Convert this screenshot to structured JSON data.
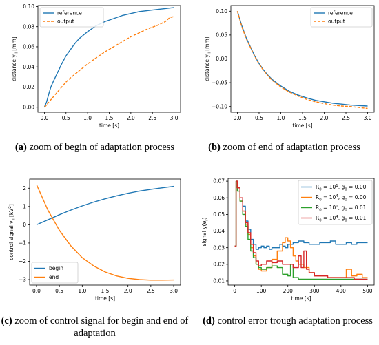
{
  "captions": {
    "a": {
      "tag": "(a)",
      "text": " zoom of begin of adaptation process"
    },
    "b": {
      "tag": "(b)",
      "text": " zoom of end of adaptation process"
    },
    "c": {
      "tag": "(c)",
      "text": " zoom of control signal for begin and end of adaptation"
    },
    "d": {
      "tag": "(d)",
      "text": " control error trough adaptation process"
    }
  },
  "chart_data": [
    {
      "id": "a",
      "type": "line",
      "xlabel": "time [s]",
      "ylabel": "distance y_ll [mm]",
      "xlim": [
        -0.15,
        3.15
      ],
      "ylim": [
        -0.005,
        0.101
      ],
      "xticks": [
        0.0,
        0.5,
        1.0,
        1.5,
        2.0,
        2.5,
        3.0
      ],
      "yticks": [
        0.0,
        0.02,
        0.04,
        0.06,
        0.08,
        0.1
      ],
      "tick_decimals": {
        "x": 1,
        "y": 2
      },
      "legend": "top-left",
      "series": [
        {
          "name": "reference",
          "color": "#1f77b4",
          "style": "solid",
          "x": [
            0.0,
            0.05,
            0.1,
            0.15,
            0.2,
            0.3,
            0.4,
            0.5,
            0.6,
            0.7,
            0.8,
            1.0,
            1.2,
            1.4,
            1.6,
            1.8,
            2.0,
            2.2,
            2.4,
            2.6,
            2.8,
            3.0
          ],
          "y": [
            0.0,
            0.005,
            0.013,
            0.02,
            0.025,
            0.034,
            0.043,
            0.051,
            0.057,
            0.063,
            0.068,
            0.075,
            0.081,
            0.085,
            0.088,
            0.091,
            0.093,
            0.095,
            0.096,
            0.097,
            0.098,
            0.099
          ]
        },
        {
          "name": "output",
          "color": "#ff7f0e",
          "style": "dashed",
          "x": [
            0.0,
            0.05,
            0.1,
            0.2,
            0.3,
            0.4,
            0.5,
            0.6,
            0.8,
            1.0,
            1.2,
            1.4,
            1.6,
            1.8,
            2.0,
            2.2,
            2.4,
            2.6,
            2.8,
            2.9,
            3.0
          ],
          "y": [
            0.0,
            0.002,
            0.005,
            0.01,
            0.015,
            0.02,
            0.025,
            0.029,
            0.036,
            0.043,
            0.049,
            0.055,
            0.06,
            0.065,
            0.07,
            0.074,
            0.078,
            0.081,
            0.085,
            0.089,
            0.09
          ]
        }
      ]
    },
    {
      "id": "b",
      "type": "line",
      "xlabel": "time [s]",
      "ylabel": "distance y_ll [mm]",
      "xlim": [
        -0.15,
        3.15
      ],
      "ylim": [
        -0.112,
        0.112
      ],
      "xticks": [
        0.0,
        0.5,
        1.0,
        1.5,
        2.0,
        2.5,
        3.0
      ],
      "yticks": [
        -0.1,
        -0.05,
        0.0,
        0.05,
        0.1
      ],
      "tick_decimals": {
        "x": 1,
        "y": 2
      },
      "legend": "top-right",
      "series": [
        {
          "name": "reference",
          "color": "#1f77b4",
          "style": "solid",
          "x": [
            0.0,
            0.1,
            0.2,
            0.3,
            0.4,
            0.5,
            0.6,
            0.7,
            0.8,
            1.0,
            1.2,
            1.4,
            1.6,
            1.8,
            2.0,
            2.2,
            2.4,
            2.6,
            2.8,
            3.0
          ],
          "y": [
            0.1,
            0.07,
            0.045,
            0.025,
            0.006,
            -0.01,
            -0.023,
            -0.034,
            -0.043,
            -0.057,
            -0.068,
            -0.076,
            -0.082,
            -0.087,
            -0.09,
            -0.093,
            -0.095,
            -0.097,
            -0.098,
            -0.099
          ]
        },
        {
          "name": "output",
          "color": "#ff7f0e",
          "style": "dashed",
          "x": [
            0.0,
            0.1,
            0.2,
            0.3,
            0.4,
            0.5,
            0.6,
            0.7,
            0.8,
            1.0,
            1.2,
            1.4,
            1.6,
            1.8,
            2.0,
            2.2,
            2.4,
            2.6,
            2.8,
            3.0
          ],
          "y": [
            0.1,
            0.068,
            0.043,
            0.024,
            0.005,
            -0.011,
            -0.024,
            -0.035,
            -0.045,
            -0.059,
            -0.07,
            -0.078,
            -0.085,
            -0.09,
            -0.094,
            -0.097,
            -0.099,
            -0.1,
            -0.102,
            -0.104
          ]
        }
      ]
    },
    {
      "id": "c",
      "type": "line",
      "xlabel": "time [s]",
      "ylabel": "control signal v_ll [kV^2]",
      "xlim": [
        -0.15,
        3.15
      ],
      "ylim": [
        -3.3,
        2.5
      ],
      "xticks": [
        0.0,
        0.5,
        1.0,
        1.5,
        2.0,
        2.5,
        3.0
      ],
      "yticks": [
        -3,
        -2,
        -1,
        0,
        1,
        2
      ],
      "tick_decimals": {
        "x": 1,
        "y": 0
      },
      "legend": "bottom-left",
      "series": [
        {
          "name": "begin",
          "color": "#1f77b4",
          "style": "solid",
          "x": [
            0.0,
            0.25,
            0.5,
            0.75,
            1.0,
            1.25,
            1.5,
            1.75,
            2.0,
            2.25,
            2.5,
            2.75,
            3.0
          ],
          "y": [
            0.0,
            0.27,
            0.55,
            0.8,
            1.03,
            1.24,
            1.42,
            1.58,
            1.72,
            1.84,
            1.94,
            2.02,
            2.1
          ]
        },
        {
          "name": "end",
          "color": "#ff7f0e",
          "style": "solid",
          "x": [
            0.0,
            0.25,
            0.5,
            0.75,
            1.0,
            1.25,
            1.5,
            1.75,
            2.0,
            2.25,
            2.5,
            2.75,
            3.0
          ],
          "y": [
            2.2,
            0.8,
            -0.3,
            -1.15,
            -1.8,
            -2.25,
            -2.58,
            -2.8,
            -2.93,
            -3.0,
            -3.03,
            -3.03,
            -3.02
          ]
        }
      ]
    },
    {
      "id": "d",
      "type": "line",
      "xlabel": "time [s]",
      "ylabel": "signal y(e_r)",
      "xlim": [
        -25,
        525
      ],
      "ylim": [
        0.0075,
        0.0717
      ],
      "xticks": [
        0,
        100,
        200,
        300,
        400,
        500
      ],
      "yticks": [
        0.01,
        0.02,
        0.03,
        0.04,
        0.05,
        0.06,
        0.07
      ],
      "tick_decimals": {
        "x": 0,
        "y": 2
      },
      "legend": "top-right",
      "series": [
        {
          "name": "R_0 = 10^1, g_0 = 0.00",
          "color": "#1f77b4",
          "style": "step",
          "x": [
            0,
            5,
            10,
            20,
            30,
            40,
            50,
            60,
            70,
            80,
            90,
            100,
            110,
            120,
            130,
            140,
            150,
            160,
            170,
            180,
            190,
            200,
            220,
            240,
            260,
            280,
            300,
            320,
            340,
            360,
            380,
            400,
            420,
            440,
            460,
            480,
            500
          ],
          "y": [
            0.031,
            0.07,
            0.066,
            0.06,
            0.055,
            0.046,
            0.041,
            0.035,
            0.032,
            0.029,
            0.03,
            0.031,
            0.03,
            0.031,
            0.029,
            0.03,
            0.03,
            0.03,
            0.032,
            0.031,
            0.03,
            0.032,
            0.033,
            0.034,
            0.033,
            0.032,
            0.032,
            0.033,
            0.033,
            0.034,
            0.032,
            0.032,
            0.033,
            0.032,
            0.033,
            0.033,
            0.033
          ]
        },
        {
          "name": "R_0 = 10^4, g_0 = 0.00",
          "color": "#ff7f0e",
          "style": "step",
          "x": [
            0,
            5,
            10,
            20,
            30,
            40,
            50,
            60,
            70,
            80,
            90,
            100,
            120,
            140,
            160,
            180,
            190,
            200,
            210,
            220,
            230,
            240,
            260,
            280,
            300,
            350,
            400,
            420,
            440,
            460,
            480,
            500
          ],
          "y": [
            0.031,
            0.07,
            0.066,
            0.058,
            0.052,
            0.044,
            0.038,
            0.03,
            0.025,
            0.02,
            0.017,
            0.016,
            0.018,
            0.023,
            0.028,
            0.033,
            0.036,
            0.034,
            0.03,
            0.025,
            0.022,
            0.02,
            0.018,
            0.015,
            0.013,
            0.012,
            0.012,
            0.017,
            0.013,
            0.014,
            0.012,
            0.012
          ]
        },
        {
          "name": "R_0 = 10^1, g_0 = 0.01",
          "color": "#2ca02c",
          "style": "step",
          "x": [
            0,
            5,
            10,
            20,
            30,
            40,
            50,
            60,
            70,
            80,
            90,
            100,
            120,
            140,
            160,
            180,
            200,
            210,
            220,
            240,
            260,
            280,
            300,
            350,
            400,
            450,
            500
          ],
          "y": [
            0.031,
            0.07,
            0.064,
            0.058,
            0.05,
            0.043,
            0.035,
            0.028,
            0.024,
            0.02,
            0.018,
            0.017,
            0.018,
            0.019,
            0.018,
            0.014,
            0.013,
            0.02,
            0.012,
            0.011,
            0.011,
            0.011,
            0.011,
            0.011,
            0.011,
            0.011,
            0.011
          ]
        },
        {
          "name": "R_0 = 10^4, g_0 = 0.01",
          "color": "#d62728",
          "style": "step",
          "x": [
            0,
            5,
            10,
            20,
            30,
            40,
            50,
            60,
            70,
            80,
            90,
            100,
            120,
            140,
            160,
            180,
            200,
            220,
            240,
            250,
            260,
            270,
            280,
            300,
            350,
            400,
            450,
            500
          ],
          "y": [
            0.031,
            0.07,
            0.066,
            0.06,
            0.052,
            0.045,
            0.039,
            0.032,
            0.027,
            0.022,
            0.019,
            0.02,
            0.022,
            0.021,
            0.022,
            0.02,
            0.02,
            0.018,
            0.025,
            0.018,
            0.028,
            0.017,
            0.015,
            0.013,
            0.012,
            0.012,
            0.011,
            0.011
          ]
        }
      ]
    }
  ]
}
